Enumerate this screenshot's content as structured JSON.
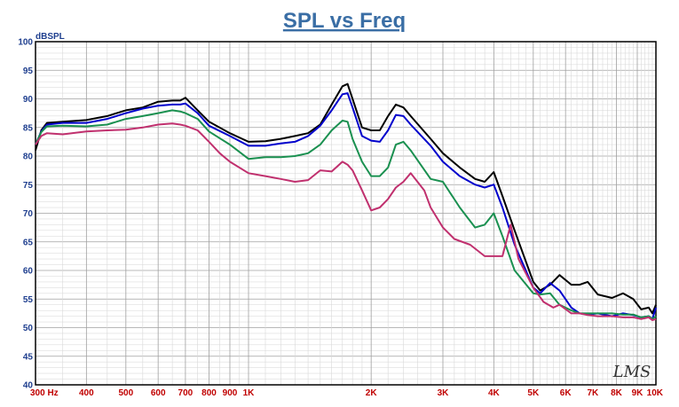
{
  "chart_data": {
    "type": "line",
    "title": "SPL vs Freq",
    "ylabel": "dBSPL",
    "xscale": "log",
    "xlim": [
      300,
      10000
    ],
    "ylim": [
      40,
      100
    ],
    "yticks": [
      40,
      45,
      50,
      55,
      60,
      65,
      70,
      75,
      80,
      85,
      90,
      95,
      100
    ],
    "yticklabels": [
      "40",
      "45",
      "50",
      "55",
      "60",
      "65",
      "70",
      "75",
      "80",
      "85",
      "90",
      "95",
      "100"
    ],
    "xticks": [
      300,
      400,
      500,
      600,
      700,
      800,
      900,
      1000,
      2000,
      3000,
      4000,
      5000,
      6000,
      7000,
      8000,
      9000,
      10000
    ],
    "xticklabels": [
      "300 Hz",
      "400",
      "500",
      "600",
      "700",
      "800",
      "900",
      "1K",
      "2K",
      "3K",
      "4K",
      "5K",
      "6K",
      "7K",
      "8K",
      "9K",
      "10K"
    ],
    "grid": true,
    "logo": "LMS",
    "series": [
      {
        "color": "#000000",
        "points": [
          [
            300,
            81
          ],
          [
            310,
            84.5
          ],
          [
            320,
            85.8
          ],
          [
            350,
            86
          ],
          [
            400,
            86.3
          ],
          [
            450,
            87
          ],
          [
            500,
            88
          ],
          [
            550,
            88.5
          ],
          [
            600,
            89.5
          ],
          [
            650,
            89.7
          ],
          [
            680,
            89.7
          ],
          [
            700,
            90.2
          ],
          [
            750,
            88
          ],
          [
            800,
            86
          ],
          [
            900,
            84
          ],
          [
            1000,
            82.5
          ],
          [
            1100,
            82.6
          ],
          [
            1200,
            83
          ],
          [
            1300,
            83.5
          ],
          [
            1400,
            84
          ],
          [
            1500,
            85.5
          ],
          [
            1600,
            89
          ],
          [
            1700,
            92.2
          ],
          [
            1750,
            92.6
          ],
          [
            1800,
            90
          ],
          [
            1900,
            85
          ],
          [
            2000,
            84.5
          ],
          [
            2100,
            84.5
          ],
          [
            2200,
            87
          ],
          [
            2300,
            89
          ],
          [
            2400,
            88.5
          ],
          [
            2500,
            87
          ],
          [
            2800,
            83
          ],
          [
            3000,
            80.5
          ],
          [
            3300,
            78
          ],
          [
            3600,
            76
          ],
          [
            3800,
            75.5
          ],
          [
            4000,
            77.2
          ],
          [
            4200,
            73
          ],
          [
            4500,
            67
          ],
          [
            5000,
            58
          ],
          [
            5200,
            56.5
          ],
          [
            5500,
            57.5
          ],
          [
            5800,
            59.2
          ],
          [
            6200,
            57.5
          ],
          [
            6500,
            57.5
          ],
          [
            6800,
            58
          ],
          [
            7200,
            55.8
          ],
          [
            7800,
            55.2
          ],
          [
            8300,
            56
          ],
          [
            8800,
            55
          ],
          [
            9200,
            53.2
          ],
          [
            9600,
            53.5
          ],
          [
            9800,
            52.5
          ],
          [
            10000,
            54
          ]
        ]
      },
      {
        "color": "#0000cc",
        "points": [
          [
            300,
            82
          ],
          [
            310,
            84.3
          ],
          [
            320,
            85.5
          ],
          [
            350,
            85.8
          ],
          [
            400,
            85.8
          ],
          [
            450,
            86.5
          ],
          [
            500,
            87.5
          ],
          [
            550,
            88.3
          ],
          [
            600,
            88.8
          ],
          [
            650,
            89
          ],
          [
            680,
            89
          ],
          [
            700,
            89.2
          ],
          [
            750,
            87.5
          ],
          [
            800,
            85.3
          ],
          [
            900,
            83.5
          ],
          [
            1000,
            81.8
          ],
          [
            1100,
            81.8
          ],
          [
            1200,
            82.2
          ],
          [
            1300,
            82.5
          ],
          [
            1400,
            83.5
          ],
          [
            1500,
            85.3
          ],
          [
            1600,
            88
          ],
          [
            1700,
            90.8
          ],
          [
            1750,
            91
          ],
          [
            1800,
            88.5
          ],
          [
            1900,
            83.5
          ],
          [
            2000,
            82.7
          ],
          [
            2100,
            82.5
          ],
          [
            2200,
            84.5
          ],
          [
            2300,
            87.2
          ],
          [
            2400,
            87
          ],
          [
            2500,
            85.5
          ],
          [
            2800,
            81.8
          ],
          [
            3000,
            79
          ],
          [
            3300,
            76.5
          ],
          [
            3600,
            75
          ],
          [
            3800,
            74.5
          ],
          [
            4000,
            75
          ],
          [
            4200,
            71
          ],
          [
            4500,
            64.5
          ],
          [
            5000,
            57
          ],
          [
            5200,
            56
          ],
          [
            5500,
            57.8
          ],
          [
            5800,
            56.5
          ],
          [
            6200,
            53.5
          ],
          [
            6500,
            52.5
          ],
          [
            6800,
            52.3
          ],
          [
            7200,
            52.5
          ],
          [
            7800,
            52
          ],
          [
            8300,
            52.5
          ],
          [
            8800,
            52.2
          ],
          [
            9200,
            51.8
          ],
          [
            9600,
            52
          ],
          [
            9800,
            51.5
          ],
          [
            10000,
            53.5
          ]
        ]
      },
      {
        "color": "#1a9050",
        "points": [
          [
            300,
            82
          ],
          [
            310,
            84.2
          ],
          [
            320,
            85.2
          ],
          [
            350,
            85.3
          ],
          [
            400,
            85.2
          ],
          [
            450,
            85.5
          ],
          [
            500,
            86.5
          ],
          [
            550,
            87
          ],
          [
            600,
            87.5
          ],
          [
            650,
            88
          ],
          [
            680,
            87.8
          ],
          [
            700,
            87.5
          ],
          [
            750,
            86.5
          ],
          [
            800,
            84.3
          ],
          [
            900,
            82
          ],
          [
            1000,
            79.5
          ],
          [
            1100,
            79.8
          ],
          [
            1200,
            79.8
          ],
          [
            1300,
            80
          ],
          [
            1400,
            80.5
          ],
          [
            1500,
            82
          ],
          [
            1600,
            84.5
          ],
          [
            1700,
            86.2
          ],
          [
            1750,
            86
          ],
          [
            1800,
            83
          ],
          [
            1900,
            79
          ],
          [
            2000,
            76.5
          ],
          [
            2100,
            76.5
          ],
          [
            2200,
            78
          ],
          [
            2300,
            82
          ],
          [
            2400,
            82.5
          ],
          [
            2500,
            81
          ],
          [
            2800,
            76
          ],
          [
            3000,
            75.5
          ],
          [
            3300,
            71
          ],
          [
            3600,
            67.5
          ],
          [
            3800,
            68
          ],
          [
            4000,
            70
          ],
          [
            4200,
            66
          ],
          [
            4500,
            60
          ],
          [
            5000,
            56
          ],
          [
            5200,
            55.8
          ],
          [
            5500,
            56
          ],
          [
            5800,
            54
          ],
          [
            6200,
            53
          ],
          [
            6500,
            52.5
          ],
          [
            6800,
            52.5
          ],
          [
            7200,
            52.5
          ],
          [
            7800,
            52.5
          ],
          [
            8300,
            52.3
          ],
          [
            8800,
            52.3
          ],
          [
            9200,
            51.8
          ],
          [
            9600,
            52
          ],
          [
            9800,
            51.5
          ],
          [
            10000,
            52
          ]
        ]
      },
      {
        "color": "#c0306e",
        "points": [
          [
            300,
            82
          ],
          [
            310,
            83.5
          ],
          [
            320,
            84
          ],
          [
            350,
            83.8
          ],
          [
            400,
            84.3
          ],
          [
            450,
            84.5
          ],
          [
            500,
            84.6
          ],
          [
            550,
            85
          ],
          [
            600,
            85.5
          ],
          [
            650,
            85.7
          ],
          [
            680,
            85.5
          ],
          [
            700,
            85.3
          ],
          [
            750,
            84.5
          ],
          [
            800,
            82.5
          ],
          [
            850,
            80.5
          ],
          [
            900,
            79
          ],
          [
            1000,
            77
          ],
          [
            1100,
            76.5
          ],
          [
            1200,
            76
          ],
          [
            1300,
            75.5
          ],
          [
            1400,
            75.8
          ],
          [
            1500,
            77.5
          ],
          [
            1600,
            77.3
          ],
          [
            1700,
            79
          ],
          [
            1750,
            78.5
          ],
          [
            1800,
            77.5
          ],
          [
            1900,
            74
          ],
          [
            2000,
            70.5
          ],
          [
            2100,
            71
          ],
          [
            2200,
            72.5
          ],
          [
            2300,
            74.5
          ],
          [
            2400,
            75.5
          ],
          [
            2500,
            77
          ],
          [
            2700,
            74
          ],
          [
            2800,
            71
          ],
          [
            3000,
            67.5
          ],
          [
            3200,
            65.5
          ],
          [
            3500,
            64.5
          ],
          [
            3800,
            62.5
          ],
          [
            4000,
            62.5
          ],
          [
            4200,
            62.5
          ],
          [
            4400,
            68
          ],
          [
            4600,
            62
          ],
          [
            5000,
            57
          ],
          [
            5300,
            54.5
          ],
          [
            5600,
            53.5
          ],
          [
            5800,
            54
          ],
          [
            6200,
            52.5
          ],
          [
            6500,
            52.5
          ],
          [
            6800,
            52.2
          ],
          [
            7200,
            52
          ],
          [
            7800,
            52
          ],
          [
            8300,
            51.8
          ],
          [
            8800,
            51.8
          ],
          [
            9200,
            51.5
          ],
          [
            9600,
            51.8
          ],
          [
            9800,
            51.3
          ],
          [
            10000,
            51.5
          ]
        ]
      }
    ]
  }
}
